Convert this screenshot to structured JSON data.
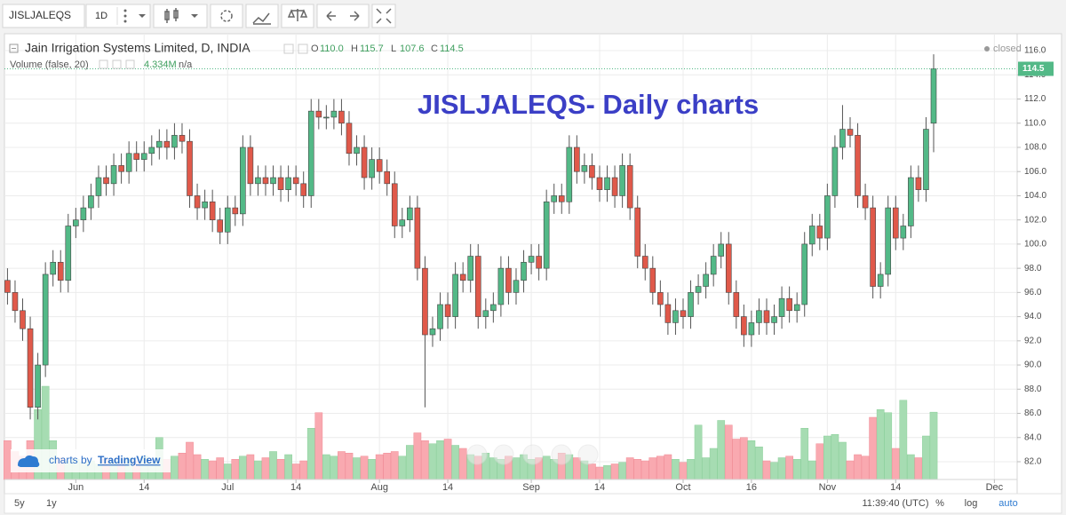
{
  "toolbar": {
    "symbol": "JISLJALEQS",
    "interval": "1D"
  },
  "legend": {
    "title": "Jain Irrigation Systems Limited, D, INDIA",
    "ohlc": [
      {
        "label": "O",
        "value": "110.0"
      },
      {
        "label": "H",
        "value": "115.7"
      },
      {
        "label": "L",
        "value": "107.6"
      },
      {
        "label": "C",
        "value": "114.5"
      }
    ],
    "status": "closed",
    "volume_title": "Volume (false, 20)",
    "volume_value": "4.334M",
    "volume_ma": "n/a"
  },
  "watermark": {
    "prefix": "charts by",
    "brand": "TradingView"
  },
  "footer": {
    "ranges": [
      "5y",
      "1y"
    ],
    "clock": "11:39:40 (UTC)",
    "buttons": [
      "%",
      "log",
      "auto"
    ]
  },
  "chart_data": {
    "type": "candlestick",
    "title": "JISLJALEQS- Daily charts",
    "open": [
      97,
      96,
      94.5,
      93,
      86.5,
      90,
      97.5,
      98.5,
      97,
      101.5,
      102,
      103,
      104,
      105.5,
      105,
      106.5,
      106,
      107.5,
      107,
      107.5,
      108,
      108.5,
      108,
      109,
      108.5,
      104,
      103,
      103.5,
      102,
      101,
      103,
      102.5,
      108,
      105,
      105.5,
      105,
      105.5,
      104.5,
      105.5,
      105,
      104,
      111,
      110.5,
      110.5,
      111,
      110,
      107.5,
      108,
      105.5,
      107,
      106,
      105,
      101.5,
      102,
      103,
      98,
      92.5,
      93,
      95,
      94,
      97.5,
      97,
      99,
      94,
      94.5,
      95,
      98,
      96,
      97,
      98.5,
      99,
      98,
      103.5,
      104,
      103.5,
      108,
      106,
      106.5,
      105.5,
      104.5,
      105.5,
      104,
      106.5,
      103,
      99,
      98,
      96,
      95,
      93.5,
      94.5,
      94,
      96,
      96.5,
      97.5,
      99,
      100,
      96,
      94,
      92.5,
      93.5,
      94.5,
      93.5,
      94,
      95.5,
      94.5,
      95,
      100,
      101.5,
      100.5,
      104,
      108,
      109.5,
      109,
      104,
      103,
      96.5,
      97.5,
      103,
      100.5,
      101.5,
      105.5,
      104.5,
      110.0
    ],
    "high": [
      98,
      97,
      95.5,
      94,
      91,
      98.5,
      99.5,
      99.5,
      102.5,
      103,
      104,
      105,
      106.5,
      106.5,
      107.5,
      107.5,
      108.5,
      108.5,
      108.5,
      109,
      109.5,
      109.5,
      110,
      110,
      109.5,
      105,
      104.5,
      104.5,
      103,
      104,
      104,
      109,
      109,
      106.5,
      106.5,
      106.5,
      106.5,
      106.5,
      106.5,
      106,
      112,
      112,
      111.5,
      112,
      112,
      111,
      109,
      109,
      108,
      108,
      107,
      106,
      103,
      104,
      104,
      99,
      94,
      96,
      96,
      98.5,
      98.5,
      100,
      100,
      95.5,
      96,
      99,
      99,
      98,
      99.5,
      100,
      100,
      104.5,
      105,
      105,
      109,
      109,
      107.5,
      107.5,
      106.5,
      106.5,
      106.5,
      107.5,
      107.5,
      104,
      100,
      99,
      97,
      96,
      95.5,
      95.5,
      97,
      97.5,
      98.5,
      100,
      101,
      101,
      97,
      95,
      94.5,
      95.5,
      95.5,
      95,
      96.5,
      96.5,
      96,
      101,
      102.5,
      102.5,
      105,
      109,
      111.5,
      110.5,
      110,
      105,
      104,
      98.5,
      104,
      104,
      102.5,
      106.5,
      106.5,
      110.5,
      115.7
    ],
    "low": [
      95,
      93.5,
      92,
      85.5,
      85.5,
      89,
      96.5,
      96,
      96,
      100.5,
      101,
      102,
      103,
      104,
      104,
      105,
      105,
      106,
      106,
      106.5,
      107,
      107,
      107,
      107.5,
      103,
      102,
      102,
      101,
      100,
      100,
      101.5,
      101.5,
      104,
      104,
      104,
      104,
      103.5,
      103.5,
      104,
      103,
      103,
      109.5,
      109.5,
      109.5,
      109,
      106.5,
      106.5,
      104.5,
      104.5,
      105,
      104,
      100.5,
      100.5,
      101,
      97,
      86.5,
      91.5,
      92,
      93,
      93,
      96,
      96,
      93,
      93,
      93.5,
      94,
      95,
      95,
      96,
      97.5,
      97,
      97,
      102.5,
      102.5,
      102.5,
      105,
      105,
      104.5,
      103.5,
      103.5,
      103,
      103,
      102,
      98,
      97,
      95,
      94,
      92.5,
      92.5,
      93,
      93,
      95,
      95.5,
      96.5,
      98,
      95,
      93,
      91.5,
      91.5,
      92.5,
      92.5,
      92.5,
      93,
      93.5,
      93.5,
      94,
      99,
      99.5,
      99.5,
      103,
      107,
      108,
      103,
      102,
      95.5,
      95.5,
      96.5,
      99.5,
      99.5,
      100.5,
      103.5,
      103.5,
      107.6
    ],
    "close": [
      96,
      94.5,
      93,
      86.5,
      90,
      97.5,
      98.5,
      97,
      101.5,
      102,
      103,
      104,
      105.5,
      105,
      106.5,
      106,
      107.5,
      107,
      107.5,
      108,
      108.5,
      108,
      109,
      108.5,
      104,
      103,
      103.5,
      102,
      101,
      103,
      102.5,
      108,
      105,
      105.5,
      105,
      105.5,
      104.5,
      105.5,
      105,
      104,
      111,
      110.5,
      110.5,
      111,
      110,
      107.5,
      108,
      105.5,
      107,
      106,
      105,
      101.5,
      102,
      103,
      98,
      92.5,
      93,
      95,
      94,
      97.5,
      97,
      99,
      94,
      94.5,
      95,
      98,
      96,
      97,
      98.5,
      99,
      98,
      103.5,
      104,
      103.5,
      108,
      106,
      106.5,
      105.5,
      104.5,
      105.5,
      104,
      106.5,
      103,
      99,
      98,
      96,
      95,
      93.5,
      94.5,
      94,
      96,
      96.5,
      97.5,
      99,
      100,
      96,
      94,
      92.5,
      93.5,
      94.5,
      93.5,
      94,
      95.5,
      94.5,
      95,
      100,
      101.5,
      100.5,
      104,
      108,
      109.5,
      109,
      104,
      103,
      96.5,
      97.5,
      103,
      100.5,
      101.5,
      105.5,
      104.5,
      109.5,
      114.5
    ],
    "volume": [
      2.5,
      1.8,
      1.5,
      2.5,
      4.5,
      6,
      2.5,
      1.4,
      1.2,
      1.3,
      1.1,
      1.2,
      1.0,
      1.3,
      1.2,
      1.0,
      1.4,
      1.2,
      1.5,
      1.1,
      2.7,
      1.3,
      1.5,
      1.7,
      2.4,
      1.6,
      1.3,
      1.2,
      1.4,
      1.0,
      1.3,
      1.5,
      1.6,
      1.2,
      1.4,
      1.8,
      1.3,
      1.6,
      1.0,
      1.2,
      3.3,
      4.3,
      1.6,
      1.5,
      1.8,
      1.7,
      1.4,
      1.5,
      1.3,
      1.6,
      1.7,
      1.8,
      1.5,
      2.2,
      3.0,
      2.5,
      2.3,
      2.5,
      2.6,
      2.2,
      2.0,
      1.6,
      1.5,
      1.7,
      1.4,
      1.3,
      1.5,
      1.4,
      1.6,
      1.3,
      1.4,
      1.5,
      1.3,
      1.7,
      1.6,
      1.4,
      1.2,
      1.0,
      0.8,
      0.9,
      1.0,
      1.1,
      1.4,
      1.3,
      1.2,
      1.4,
      1.5,
      1.6,
      1.3,
      1.1,
      1.3,
      3.5,
      1.4,
      2.0,
      3.8,
      3.5,
      2.6,
      2.7,
      2.5,
      2.1,
      1.2,
      1.1,
      1.4,
      1.5,
      1.3,
      3.3,
      1.2,
      2.3,
      2.8,
      2.9,
      2.4,
      1.2,
      1.6,
      1.5,
      4.0,
      4.5,
      4.3,
      2.0,
      5.1,
      1.6,
      1.4,
      2.8,
      4.334
    ],
    "up_color": "#53b987",
    "down_color": "#e0594a",
    "volume_up_color": "#a6dcb2",
    "volume_down_color": "#f9a9b0",
    "xlim": [
      -0.4,
      133
    ],
    "xticks": [
      {
        "value": 9,
        "label": "Jun"
      },
      {
        "value": 18,
        "label": "14"
      },
      {
        "value": 29,
        "label": "Jul"
      },
      {
        "value": 38,
        "label": "14"
      },
      {
        "value": 49,
        "label": "Aug"
      },
      {
        "value": 58,
        "label": "14"
      },
      {
        "value": 69,
        "label": "Sep"
      },
      {
        "value": 78,
        "label": "14"
      },
      {
        "value": 89,
        "label": "Oct"
      },
      {
        "value": 98,
        "label": "16"
      },
      {
        "value": 108,
        "label": "Nov"
      },
      {
        "value": 117,
        "label": "14"
      },
      {
        "value": 130,
        "label": "Dec"
      }
    ],
    "ylim": [
      80.53,
      117.4
    ],
    "yticks": [
      {
        "value": 82,
        "label": "82.0"
      },
      {
        "value": 84,
        "label": "84.0"
      },
      {
        "value": 86,
        "label": "86.0"
      },
      {
        "value": 88,
        "label": "88.0"
      },
      {
        "value": 90,
        "label": "90.0"
      },
      {
        "value": 92,
        "label": "92.0"
      },
      {
        "value": 94,
        "label": "94.0"
      },
      {
        "value": 96,
        "label": "96.0"
      },
      {
        "value": 98,
        "label": "98.0"
      },
      {
        "value": 100,
        "label": "100.0"
      },
      {
        "value": 102,
        "label": "102.0"
      },
      {
        "value": 104,
        "label": "104.0"
      },
      {
        "value": 106,
        "label": "106.0"
      },
      {
        "value": 108,
        "label": "108.0"
      },
      {
        "value": 110,
        "label": "110.0"
      },
      {
        "value": 112,
        "label": "112.0"
      },
      {
        "value": 114,
        "label": "114.0"
      },
      {
        "value": 116,
        "label": "116.0"
      }
    ],
    "grid": true
  }
}
